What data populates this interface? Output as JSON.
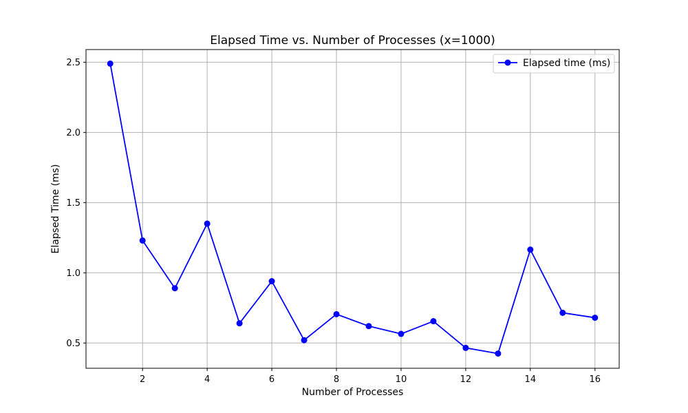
{
  "chart_data": {
    "type": "line",
    "title": "Elapsed Time vs. Number of Processes (x=1000)",
    "xlabel": "Number of Processes",
    "ylabel": "Elapsed Time (ms)",
    "x": [
      1,
      2,
      3,
      4,
      5,
      6,
      7,
      8,
      9,
      10,
      11,
      12,
      13,
      14,
      15,
      16
    ],
    "series": [
      {
        "name": "Elapsed time (ms)",
        "color": "#0000ff",
        "marker": "circle",
        "values": [
          2.49,
          1.23,
          0.89,
          1.35,
          0.64,
          0.94,
          0.52,
          0.705,
          0.62,
          0.565,
          0.655,
          0.465,
          0.425,
          1.165,
          0.715,
          0.68
        ]
      }
    ],
    "xlim": [
      0.25,
      16.75
    ],
    "ylim": [
      0.32,
      2.59
    ],
    "xticks": [
      2,
      4,
      6,
      8,
      10,
      12,
      14,
      16
    ],
    "xtick_labels": [
      "2",
      "4",
      "6",
      "8",
      "10",
      "12",
      "14",
      "16"
    ],
    "yticks": [
      0.5,
      1.0,
      1.5,
      2.0,
      2.5
    ],
    "ytick_labels": [
      "0.5",
      "1.0",
      "1.5",
      "2.0",
      "2.5"
    ],
    "grid": true,
    "legend_position": "top-right"
  }
}
